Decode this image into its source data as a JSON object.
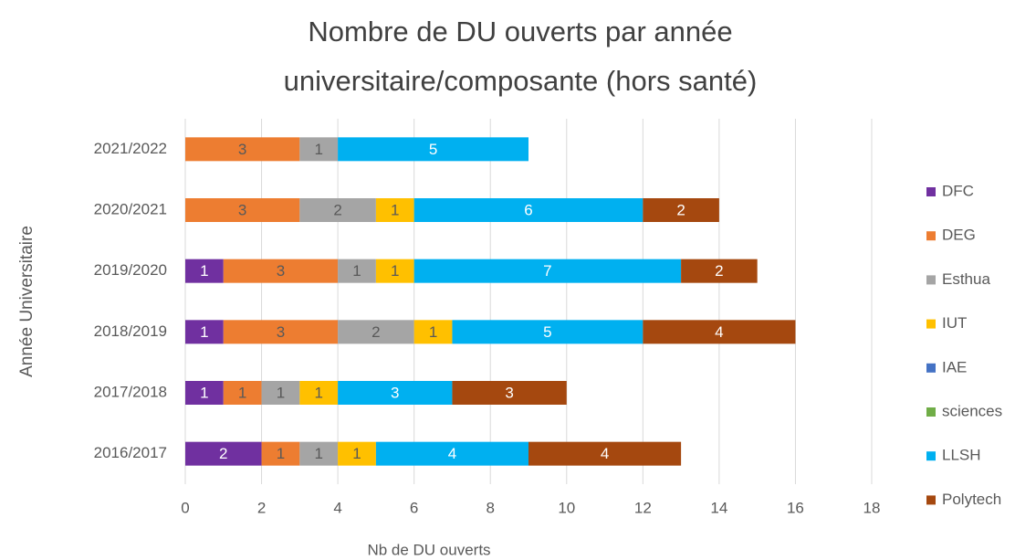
{
  "chart_data": {
    "type": "stacked_barh",
    "title": "Nombre de DU ouverts par année universitaire/composante (hors santé)",
    "xlabel": "Nb de DU ouverts",
    "ylabel": "Année Universitaire",
    "categories": [
      "2021/2022",
      "2020/2021",
      "2019/2020",
      "2018/2019",
      "2017/2018",
      "2016/2017"
    ],
    "series": [
      {
        "name": "DFC",
        "color": "#7030a0",
        "values": [
          null,
          null,
          1,
          1,
          1,
          2
        ]
      },
      {
        "name": "DEG",
        "color": "#ed7d31",
        "values": [
          3,
          3,
          3,
          3,
          1,
          1
        ]
      },
      {
        "name": "Esthua",
        "color": "#a5a5a5",
        "values": [
          1,
          2,
          1,
          2,
          1,
          1
        ]
      },
      {
        "name": "IUT",
        "color": "#ffc000",
        "values": [
          null,
          1,
          1,
          1,
          1,
          1
        ]
      },
      {
        "name": "IAE",
        "color": "#4472c4",
        "values": [
          null,
          null,
          null,
          null,
          null,
          null
        ]
      },
      {
        "name": "sciences",
        "color": "#70ad47",
        "values": [
          null,
          null,
          null,
          null,
          null,
          null
        ]
      },
      {
        "name": "LLSH",
        "color": "#00b0f0",
        "values": [
          5,
          6,
          7,
          5,
          3,
          4
        ]
      },
      {
        "name": "Polytech",
        "color": "#a5480f",
        "values": [
          null,
          2,
          2,
          4,
          3,
          4
        ]
      }
    ],
    "xlim": [
      0,
      18
    ],
    "xticks": [
      0,
      2,
      4,
      6,
      8,
      10,
      12,
      14,
      16,
      18
    ],
    "grid": true,
    "legend": "right"
  }
}
